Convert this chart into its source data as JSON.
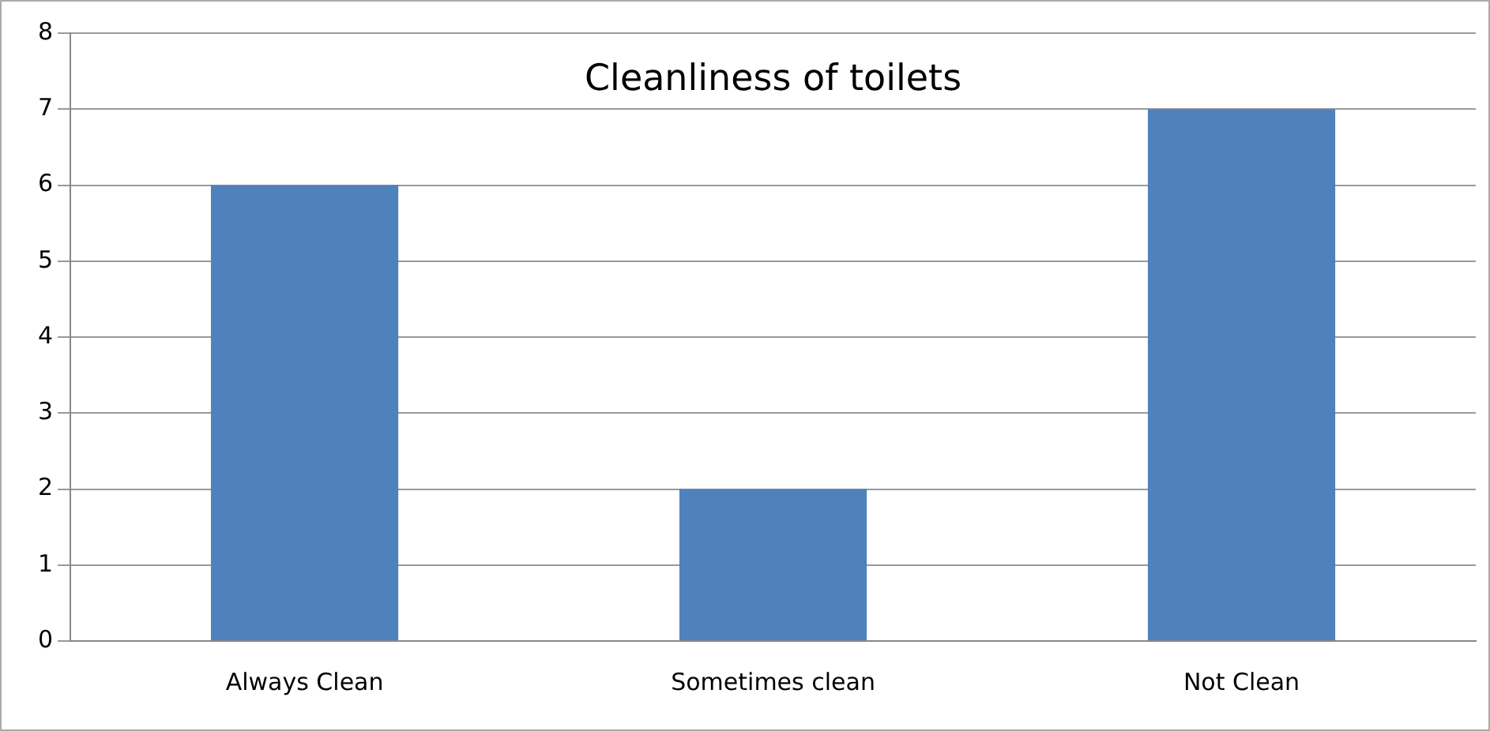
{
  "chart_data": {
    "type": "bar",
    "title": "Cleanliness of toilets",
    "categories": [
      "Always Clean",
      "Sometimes clean",
      "Not Clean"
    ],
    "values": [
      6,
      2,
      7
    ],
    "color": "#4f81bd",
    "ylim": [
      0,
      8
    ],
    "yticks": [
      0,
      1,
      2,
      3,
      4,
      5,
      6,
      7,
      8
    ],
    "grid": "y",
    "legend": false
  }
}
